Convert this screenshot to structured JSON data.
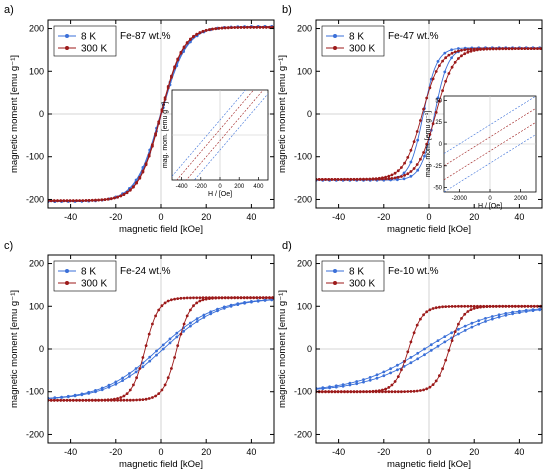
{
  "chart_data": [
    {
      "type": "line",
      "panel_label": "a)",
      "sample": "Fe-87 wt.%",
      "xlabel": "magnetic field [kOe]",
      "ylabel": "magnetic moment [emu g⁻¹]",
      "xlim": [
        -50,
        50
      ],
      "ylim": [
        -220,
        220
      ],
      "xticks": [
        -40,
        -20,
        0,
        20,
        40
      ],
      "yticks": [
        -200,
        -100,
        0,
        100,
        200
      ],
      "xtick_labels": [
        "-40",
        "-20",
        "0",
        "20",
        "40"
      ],
      "ytick_labels": [
        "-200",
        "-100",
        "0",
        "100",
        "200"
      ],
      "legend_position": "top-left",
      "series": [
        {
          "name": "8 K",
          "color": "#3a6fd8",
          "ms": 205,
          "k": 11,
          "hc": 0.2,
          "linear": 0
        },
        {
          "name": "300 K",
          "color": "#9c1a1a",
          "ms": 203,
          "k": 10,
          "hc": 0.1,
          "linear": 0
        }
      ],
      "inset": {
        "xlabel": "H / [Oe]",
        "ylabel": "mag. mom. [emu g⁻¹]",
        "xlim": [
          -500,
          500
        ],
        "ylim": [
          -12,
          12
        ],
        "xticks": [
          -400,
          -200,
          0,
          200,
          400
        ],
        "xtick_labels": [
          "-400",
          "-200",
          "0",
          "200",
          "400"
        ],
        "yticks": [],
        "ytick_labels": [],
        "lines": [
          {
            "series": "8 K",
            "slope": 0.03,
            "offsets": [
              4,
              -4
            ]
          },
          {
            "series": "300 K",
            "slope": 0.03,
            "offsets": [
              1.5,
              -1.5
            ]
          }
        ]
      }
    },
    {
      "type": "line",
      "panel_label": "b)",
      "sample": "Fe-47 wt.%",
      "xlabel": "magnetic field [kOe]",
      "ylabel": "magnetic moment [emu g⁻¹]",
      "xlim": [
        -50,
        50
      ],
      "ylim": [
        -220,
        220
      ],
      "xticks": [
        -40,
        -20,
        0,
        20,
        40
      ],
      "yticks": [
        -200,
        -100,
        0,
        100,
        200
      ],
      "xtick_labels": [
        "-40",
        "-20",
        "0",
        "20",
        "40"
      ],
      "ytick_labels": [
        "-200",
        "-100",
        "0",
        "100",
        "200"
      ],
      "legend_position": "top-left",
      "series": [
        {
          "name": "8 K",
          "color": "#3a6fd8",
          "ms": 155,
          "k": 6,
          "hc": 2.5,
          "linear": 0
        },
        {
          "name": "300 K",
          "color": "#9c1a1a",
          "ms": 153,
          "k": 8,
          "hc": 3,
          "linear": 0
        }
      ],
      "inset": {
        "xlabel": "H / [Oe]",
        "ylabel": "mag. mom. [emu g⁻¹]",
        "xlim": [
          -3000,
          3000
        ],
        "ylim": [
          -55,
          55
        ],
        "xticks": [
          -2000,
          0,
          2000
        ],
        "xtick_labels": [
          "-2000",
          "0",
          "2000"
        ],
        "yticks": [
          -50,
          -25,
          0,
          25,
          50
        ],
        "ytick_labels": [
          "-50",
          "-25",
          "0",
          "25",
          "50"
        ],
        "lines": [
          {
            "series": "8 K",
            "slope": 0.011,
            "offsets": [
              22,
              -22
            ]
          },
          {
            "series": "300 K",
            "slope": 0.011,
            "offsets": [
              8,
              -8
            ]
          }
        ]
      }
    },
    {
      "type": "line",
      "panel_label": "c)",
      "sample": "Fe-24 wt.%",
      "xlabel": "magnetic field [kOe]",
      "ylabel": "magnetic moment [emu g⁻¹]",
      "xlim": [
        -50,
        50
      ],
      "ylim": [
        -220,
        220
      ],
      "xticks": [
        -40,
        -20,
        0,
        20,
        40
      ],
      "yticks": [
        -200,
        -100,
        0,
        100,
        200
      ],
      "xtick_labels": [
        "-40",
        "-20",
        "0",
        "20",
        "40"
      ],
      "ytick_labels": [
        "-200",
        "-100",
        "0",
        "100",
        "200"
      ],
      "legend_position": "top-left",
      "series": [
        {
          "name": "8 K",
          "color": "#3a6fd8",
          "ms": 120,
          "k": 25,
          "hc": 1,
          "linear": 0
        },
        {
          "name": "300 K",
          "color": "#9c1a1a",
          "ms": 120,
          "k": 6,
          "hc": 7,
          "linear": 0
        }
      ]
    },
    {
      "type": "line",
      "panel_label": "d)",
      "sample": "Fe-10 wt.%",
      "xlabel": "magnetic field [kOe]",
      "ylabel": "magnetic moment [emu g⁻¹]",
      "xlim": [
        -50,
        50
      ],
      "ylim": [
        -220,
        220
      ],
      "xticks": [
        -40,
        -20,
        0,
        20,
        40
      ],
      "yticks": [
        -200,
        -100,
        0,
        100,
        200
      ],
      "xtick_labels": [
        "-40",
        "-20",
        "0",
        "20",
        "40"
      ],
      "ytick_labels": [
        "-200",
        "-100",
        "0",
        "100",
        "200"
      ],
      "legend_position": "top-left",
      "series": [
        {
          "name": "8 K",
          "color": "#3a6fd8",
          "ms": 100,
          "k": 30,
          "hc": 2,
          "linear": 0
        },
        {
          "name": "300 K",
          "color": "#9c1a1a",
          "ms": 100,
          "k": 6,
          "hc": 9,
          "linear": 0
        }
      ]
    }
  ]
}
